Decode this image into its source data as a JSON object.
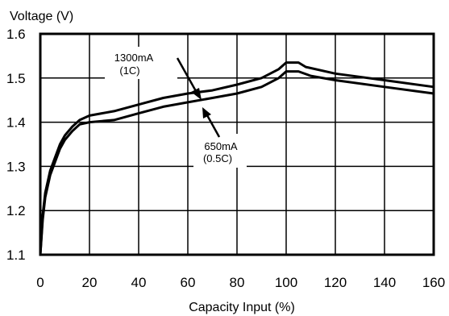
{
  "chart_data": {
    "type": "line",
    "ylabel": "Voltage (V)",
    "xlabel": "Capacity Input (%)",
    "xlim": [
      0,
      160
    ],
    "ylim": [
      1.1,
      1.6
    ],
    "x_ticks": [
      0,
      20,
      40,
      60,
      80,
      100,
      120,
      140,
      160
    ],
    "y_ticks": [
      1.1,
      1.2,
      1.3,
      1.4,
      1.5,
      1.6
    ],
    "x_tick_labels": [
      "0",
      "20",
      "40",
      "60",
      "80",
      "100",
      "120",
      "140",
      "160"
    ],
    "y_tick_labels": [
      "1.1",
      "1.2",
      "1.3",
      "1.4",
      "1.5",
      "1.6"
    ],
    "grid": true,
    "series": [
      {
        "name": "1300mA (1C)",
        "points": [
          [
            0,
            1.1
          ],
          [
            1,
            1.19
          ],
          [
            2,
            1.24
          ],
          [
            4,
            1.29
          ],
          [
            6,
            1.32
          ],
          [
            8,
            1.35
          ],
          [
            10,
            1.37
          ],
          [
            13,
            1.39
          ],
          [
            16,
            1.405
          ],
          [
            20,
            1.415
          ],
          [
            30,
            1.425
          ],
          [
            40,
            1.44
          ],
          [
            50,
            1.455
          ],
          [
            60,
            1.465
          ],
          [
            70,
            1.472
          ],
          [
            80,
            1.485
          ],
          [
            90,
            1.5
          ],
          [
            97,
            1.52
          ],
          [
            100,
            1.535
          ],
          [
            105,
            1.535
          ],
          [
            108,
            1.525
          ],
          [
            120,
            1.51
          ],
          [
            140,
            1.495
          ],
          [
            160,
            1.48
          ]
        ]
      },
      {
        "name": "650mA (0.5C)",
        "points": [
          [
            0,
            1.1
          ],
          [
            1,
            1.18
          ],
          [
            2,
            1.23
          ],
          [
            4,
            1.28
          ],
          [
            6,
            1.31
          ],
          [
            8,
            1.34
          ],
          [
            10,
            1.36
          ],
          [
            13,
            1.38
          ],
          [
            16,
            1.395
          ],
          [
            20,
            1.4
          ],
          [
            30,
            1.405
          ],
          [
            40,
            1.42
          ],
          [
            50,
            1.435
          ],
          [
            60,
            1.445
          ],
          [
            70,
            1.455
          ],
          [
            80,
            1.465
          ],
          [
            90,
            1.48
          ],
          [
            97,
            1.5
          ],
          [
            100,
            1.515
          ],
          [
            105,
            1.515
          ],
          [
            110,
            1.505
          ],
          [
            120,
            1.495
          ],
          [
            140,
            1.48
          ],
          [
            160,
            1.465
          ]
        ]
      }
    ],
    "annotations": [
      {
        "series": 0,
        "lines": [
          "1300mA",
          "(1C)"
        ]
      },
      {
        "series": 1,
        "lines": [
          "650mA",
          "(0.5C)"
        ]
      }
    ]
  }
}
